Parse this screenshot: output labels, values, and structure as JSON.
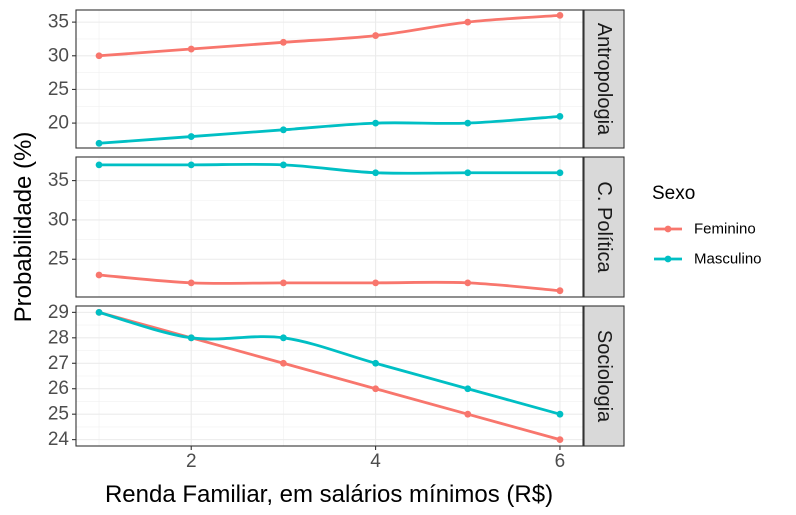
{
  "chart_data": {
    "type": "line",
    "xlabel": "Renda Familiar, em salários mínimos (R$)",
    "ylabel": "Probabilidade (%)",
    "x": [
      1,
      2,
      3,
      4,
      5,
      6
    ],
    "xticks": [
      2,
      4,
      6
    ],
    "xlim": [
      0.75,
      6.25
    ],
    "legend": {
      "title": "Sexo",
      "position": "right",
      "entries": [
        {
          "name": "Feminino",
          "color": "#F8766D"
        },
        {
          "name": "Masculino",
          "color": "#00BFC4"
        }
      ]
    },
    "grid": true,
    "panels": [
      {
        "strip": "Antropologia",
        "ylim": [
          16.3,
          36.8
        ],
        "yticks": [
          20,
          25,
          30,
          35
        ],
        "series": [
          {
            "name": "Feminino",
            "color": "#F8766D",
            "values": [
              30,
              31,
              32,
              33,
              35,
              36
            ]
          },
          {
            "name": "Masculino",
            "color": "#00BFC4",
            "values": [
              17,
              18,
              19,
              20,
              20,
              21
            ]
          }
        ]
      },
      {
        "strip": "C. Política",
        "ylim": [
          20.2,
          38.0
        ],
        "yticks": [
          25,
          30,
          35
        ],
        "series": [
          {
            "name": "Feminino",
            "color": "#F8766D",
            "values": [
              23,
              22,
              22,
              22,
              22,
              21
            ]
          },
          {
            "name": "Masculino",
            "color": "#00BFC4",
            "values": [
              37,
              37,
              37,
              36,
              36,
              36
            ]
          }
        ]
      },
      {
        "strip": "Sociologia",
        "ylim": [
          23.75,
          29.25
        ],
        "yticks": [
          24,
          25,
          26,
          27,
          28,
          29
        ],
        "series": [
          {
            "name": "Feminino",
            "color": "#F8766D",
            "values": [
              29,
              28,
              27,
              26,
              25,
              24
            ]
          },
          {
            "name": "Masculino",
            "color": "#00BFC4",
            "values": [
              29,
              28,
              28,
              27,
              26,
              25
            ]
          }
        ]
      }
    ]
  }
}
